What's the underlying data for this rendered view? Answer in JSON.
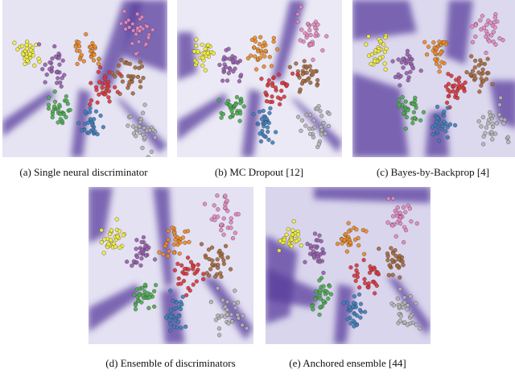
{
  "panels": [
    {
      "caption": "(a) Single neural discriminator"
    },
    {
      "caption": "(b) MC Dropout [12]"
    },
    {
      "caption": "(c) Bayes-by-Backprop [4]"
    },
    {
      "caption": "(d) Ensemble of discriminators"
    },
    {
      "caption": "(e) Anchored ensemble [44]"
    }
  ]
}
